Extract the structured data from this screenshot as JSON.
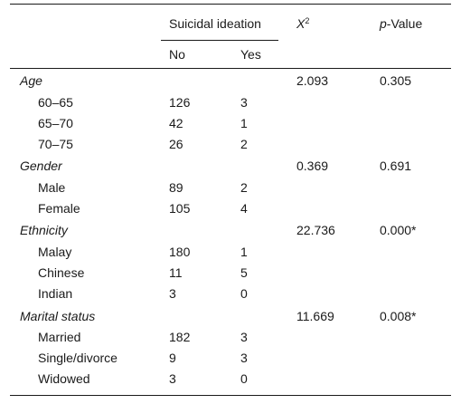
{
  "header": {
    "group_label": "Suicidal ideation",
    "col_no": "No",
    "col_yes": "Yes",
    "chi_symbol": "X",
    "chi_sup": "2",
    "p_italic": "p",
    "p_rest": "-Value"
  },
  "groups": [
    {
      "label": "Age",
      "chi": "2.093",
      "p": "0.305",
      "rows": [
        {
          "label": "60–65",
          "no": "126",
          "yes": "3"
        },
        {
          "label": "65–70",
          "no": "42",
          "yes": "1"
        },
        {
          "label": "70–75",
          "no": "26",
          "yes": "2"
        }
      ]
    },
    {
      "label": "Gender",
      "chi": "0.369",
      "p": "0.691",
      "rows": [
        {
          "label": "Male",
          "no": "89",
          "yes": "2"
        },
        {
          "label": "Female",
          "no": "105",
          "yes": "4"
        }
      ]
    },
    {
      "label": "Ethnicity",
      "chi": "22.736",
      "p": "0.000*",
      "rows": [
        {
          "label": "Malay",
          "no": "180",
          "yes": "1"
        },
        {
          "label": "Chinese",
          "no": "11",
          "yes": "5"
        },
        {
          "label": "Indian",
          "no": "3",
          "yes": "0"
        }
      ]
    },
    {
      "label": "Marital status",
      "chi": "11.669",
      "p": "0.008*",
      "rows": [
        {
          "label": "Married",
          "no": "182",
          "yes": "3"
        },
        {
          "label": "Single/divorce",
          "no": "9",
          "yes": "3"
        },
        {
          "label": "Widowed",
          "no": "3",
          "yes": "0"
        }
      ]
    }
  ]
}
